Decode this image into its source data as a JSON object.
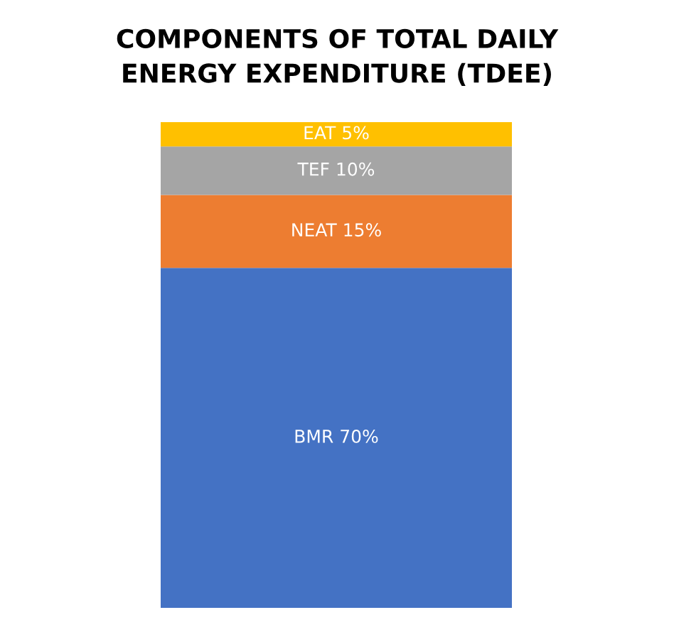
{
  "chart_data": {
    "type": "bar",
    "title": "COMPONENTS OF TOTAL DAILY\nENERGY EXPENDITURE (TDEE)",
    "stacked": true,
    "categories": [
      null
    ],
    "series": [
      {
        "color": "#4472c4",
        "values": [
          70
        ],
        "value_labels": [
          "BMR 70%"
        ]
      },
      {
        "color": "#ed7d31",
        "values": [
          15
        ],
        "value_labels": [
          "NEAT 15%"
        ]
      },
      {
        "color": "#a5a5a5",
        "values": [
          10
        ],
        "value_labels": [
          "TEF 10%"
        ]
      },
      {
        "color": "#ffc000",
        "values": [
          5
        ],
        "value_labels": [
          "EAT 5%"
        ]
      }
    ]
  }
}
